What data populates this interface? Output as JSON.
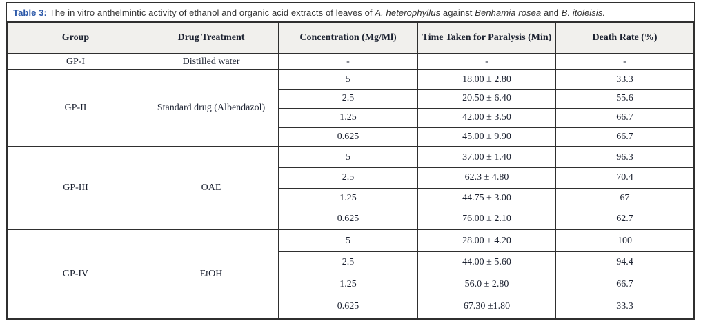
{
  "caption": {
    "segments": [
      {
        "text": "Table 3: ",
        "style": "label"
      },
      {
        "text": "The in vitro anthelmintic activity of ethanol and organic acid extracts of leaves of ",
        "style": "plain"
      },
      {
        "text": "A. heterophyllus",
        "style": "italic"
      },
      {
        "text": " against ",
        "style": "plain"
      },
      {
        "text": "Benhamia rosea",
        "style": "italic"
      },
      {
        "text": " and ",
        "style": "plain"
      },
      {
        "text": "B. itoleisis.",
        "style": "italic"
      }
    ]
  },
  "table": {
    "headers": [
      "Group",
      "Drug Treatment",
      "Concentration (Mg/Ml)",
      "Time Taken for Paralysis (Min)",
      "Death Rate (%)"
    ],
    "groups": [
      {
        "group": "GP-I",
        "treatment": "Distilled water",
        "rows": [
          {
            "concentration": "-",
            "time": "-",
            "death_rate": "-"
          }
        ]
      },
      {
        "group": "GP-II",
        "treatment": "Standard drug (Albendazol)",
        "rows": [
          {
            "concentration": "5",
            "time": "18.00 ± 2.80",
            "death_rate": "33.3"
          },
          {
            "concentration": "2.5",
            "time": "20.50 ± 6.40",
            "death_rate": "55.6"
          },
          {
            "concentration": "1.25",
            "time": "42.00 ± 3.50",
            "death_rate": "66.7"
          },
          {
            "concentration": "0.625",
            "time": "45.00 ± 9.90",
            "death_rate": "66.7"
          }
        ]
      },
      {
        "group": "GP-III",
        "treatment": "OAE",
        "rows": [
          {
            "concentration": "5",
            "time": "37.00 ± 1.40",
            "death_rate": "96.3"
          },
          {
            "concentration": "2.5",
            "time": "62.3 ± 4.80",
            "death_rate": "70.4"
          },
          {
            "concentration": "1.25",
            "time": "44.75 ± 3.00",
            "death_rate": "67"
          },
          {
            "concentration": "0.625",
            "time": "76.00 ± 2.10",
            "death_rate": "62.7"
          }
        ]
      },
      {
        "group": "GP-IV",
        "treatment": "EtOH",
        "rows": [
          {
            "concentration": "5",
            "time": "28.00 ± 4.20",
            "death_rate": "100"
          },
          {
            "concentration": "2.5",
            "time": "44.00 ± 5.60",
            "death_rate": "94.4"
          },
          {
            "concentration": "1.25",
            "time": "56.0 ± 2.80",
            "death_rate": "66.7"
          },
          {
            "concentration": "0.625",
            "time": "67.30 ±1.80",
            "death_rate": "33.3"
          }
        ]
      }
    ]
  },
  "colors": {
    "caption_label": "#2a57a8",
    "caption_text": "#333333",
    "table_text": "#1b2130",
    "border": "#2f2f2f",
    "header_bg": "#f1f0ed"
  }
}
